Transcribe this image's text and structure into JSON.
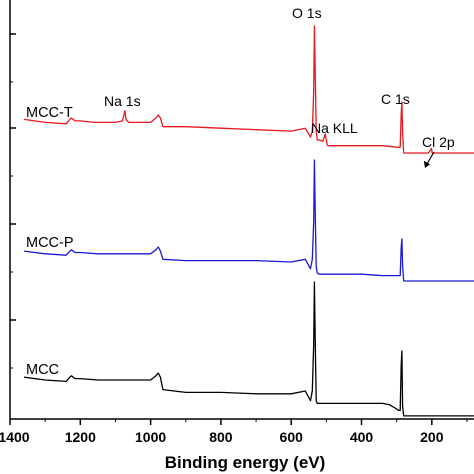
{
  "chart_data": {
    "type": "line",
    "xlabel": "Binding energy (eV)",
    "ylabel": "",
    "xlim": [
      1400,
      80
    ],
    "x_reversed": true,
    "xticks": [
      1400,
      1200,
      1000,
      800,
      600,
      400,
      200
    ],
    "xtick_labels": [
      "1400",
      "1200",
      "1000",
      "800",
      "600",
      "400",
      "200"
    ],
    "yticks": "unlabeled",
    "colors": {
      "MCC-T": "#e8191f",
      "MCC-P": "#1a1ad6",
      "MCC": "#000000"
    },
    "series": [
      {
        "name": "MCC-T",
        "label": "MCC-T",
        "x": [
          1360,
          1300,
          1240,
          1230,
          1225,
          1215,
          1200,
          1160,
          1100,
          1080,
          1073,
          1070,
          1062,
          1050,
          1000,
          985,
          978,
          972,
          965,
          900,
          800,
          700,
          600,
          560,
          545,
          540,
          536,
          534,
          531,
          529,
          526,
          520,
          510,
          503,
          498,
          495,
          490,
          450,
          400,
          340,
          300,
          290,
          287,
          285,
          283,
          280,
          260,
          230,
          210,
          201,
          199,
          190,
          150,
          100,
          80
        ],
        "y": [
          0.36,
          0.34,
          0.33,
          0.36,
          0.37,
          0.35,
          0.35,
          0.34,
          0.34,
          0.35,
          0.42,
          0.36,
          0.34,
          0.34,
          0.34,
          0.37,
          0.39,
          0.37,
          0.31,
          0.31,
          0.3,
          0.29,
          0.28,
          0.3,
          0.24,
          0.28,
          0.55,
          1.0,
          0.58,
          0.28,
          0.22,
          0.22,
          0.21,
          0.26,
          0.19,
          0.18,
          0.18,
          0.18,
          0.18,
          0.18,
          0.17,
          0.17,
          0.4,
          0.48,
          0.27,
          0.13,
          0.13,
          0.13,
          0.13,
          0.16,
          0.13,
          0.13,
          0.13,
          0.13,
          0.13
        ]
      },
      {
        "name": "MCC-P",
        "label": "MCC-P",
        "x": [
          1360,
          1300,
          1240,
          1230,
          1225,
          1215,
          1200,
          1150,
          1050,
          1000,
          985,
          978,
          972,
          965,
          900,
          800,
          700,
          600,
          560,
          545,
          540,
          536,
          534,
          531,
          529,
          526,
          520,
          500,
          450,
          400,
          340,
          300,
          290,
          287,
          285,
          283,
          280,
          260,
          200,
          150,
          100,
          80
        ],
        "y": [
          0.33,
          0.31,
          0.3,
          0.33,
          0.34,
          0.32,
          0.32,
          0.31,
          0.31,
          0.31,
          0.34,
          0.36,
          0.33,
          0.27,
          0.26,
          0.26,
          0.26,
          0.25,
          0.27,
          0.2,
          0.27,
          0.55,
          1.0,
          0.5,
          0.22,
          0.17,
          0.16,
          0.16,
          0.16,
          0.16,
          0.15,
          0.15,
          0.15,
          0.36,
          0.42,
          0.22,
          0.11,
          0.11,
          0.11,
          0.11,
          0.11,
          0.11
        ]
      },
      {
        "name": "MCC",
        "label": "MCC",
        "x": [
          1360,
          1300,
          1240,
          1230,
          1225,
          1215,
          1200,
          1150,
          1050,
          1000,
          985,
          978,
          972,
          965,
          900,
          800,
          700,
          600,
          560,
          545,
          540,
          536,
          534,
          531,
          529,
          526,
          520,
          500,
          450,
          400,
          340,
          320,
          300,
          295,
          290,
          287,
          285,
          283,
          280,
          260,
          200,
          150,
          100,
          80
        ],
        "y": [
          0.31,
          0.29,
          0.28,
          0.31,
          0.32,
          0.3,
          0.3,
          0.29,
          0.29,
          0.29,
          0.32,
          0.34,
          0.31,
          0.22,
          0.2,
          0.2,
          0.19,
          0.19,
          0.21,
          0.14,
          0.21,
          0.55,
          1.0,
          0.45,
          0.14,
          0.12,
          0.12,
          0.12,
          0.12,
          0.12,
          0.12,
          0.11,
          0.08,
          0.07,
          0.07,
          0.4,
          0.5,
          0.1,
          0.03,
          0.03,
          0.03,
          0.03,
          0.03,
          0.03
        ]
      }
    ],
    "annotations": [
      {
        "text": "Na 1s",
        "series": "MCC-T"
      },
      {
        "text": "O 1s",
        "series": "MCC-T"
      },
      {
        "text": "C 1s",
        "series": "MCC-T"
      },
      {
        "text": "Na KLL",
        "series": "MCC-T"
      },
      {
        "text": "Cl 2p",
        "series": "MCC-T",
        "arrow": true
      }
    ]
  }
}
